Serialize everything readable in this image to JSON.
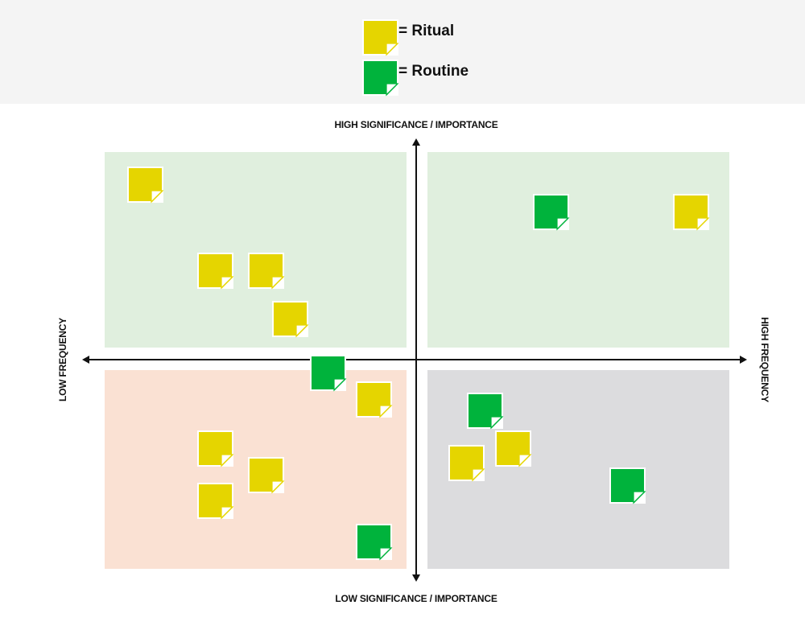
{
  "legend": {
    "items": [
      {
        "type": "ritual",
        "label": "= Ritual"
      },
      {
        "type": "routine",
        "label": "= Routine"
      }
    ]
  },
  "colors": {
    "ritual": "#e5d500",
    "routine": "#00b33c",
    "quadrant_top_left": "#e0efde",
    "quadrant_top_right": "#e0efde",
    "quadrant_bottom_left": "#fae1d3",
    "quadrant_bottom_right": "#dcdcde",
    "legend_background": "#f4f4f4",
    "axis": "#111111"
  },
  "axes": {
    "top_label": "HIGH SIGNIFICANCE / IMPORTANCE",
    "bottom_label": "LOW SIGNIFICANCE / IMPORTANCE",
    "left_label": "LOW FREQUENCY",
    "right_label": "HIGH FREQUENCY"
  },
  "notes": [
    {
      "type": "ritual",
      "quadrant": "high-significance-low-frequency"
    },
    {
      "type": "ritual",
      "quadrant": "high-significance-low-frequency"
    },
    {
      "type": "ritual",
      "quadrant": "high-significance-low-frequency"
    },
    {
      "type": "ritual",
      "quadrant": "high-significance-low-frequency"
    },
    {
      "type": "routine",
      "quadrant": "high-significance-high-frequency"
    },
    {
      "type": "ritual",
      "quadrant": "high-significance-high-frequency"
    },
    {
      "type": "routine",
      "quadrant": "low-significance-low-frequency"
    },
    {
      "type": "ritual",
      "quadrant": "low-significance-low-frequency"
    },
    {
      "type": "ritual",
      "quadrant": "low-significance-low-frequency"
    },
    {
      "type": "ritual",
      "quadrant": "low-significance-low-frequency"
    },
    {
      "type": "ritual",
      "quadrant": "low-significance-low-frequency"
    },
    {
      "type": "routine",
      "quadrant": "low-significance-low-frequency"
    },
    {
      "type": "routine",
      "quadrant": "low-significance-high-frequency"
    },
    {
      "type": "ritual",
      "quadrant": "low-significance-high-frequency"
    },
    {
      "type": "ritual",
      "quadrant": "low-significance-high-frequency"
    },
    {
      "type": "routine",
      "quadrant": "low-significance-high-frequency"
    }
  ]
}
